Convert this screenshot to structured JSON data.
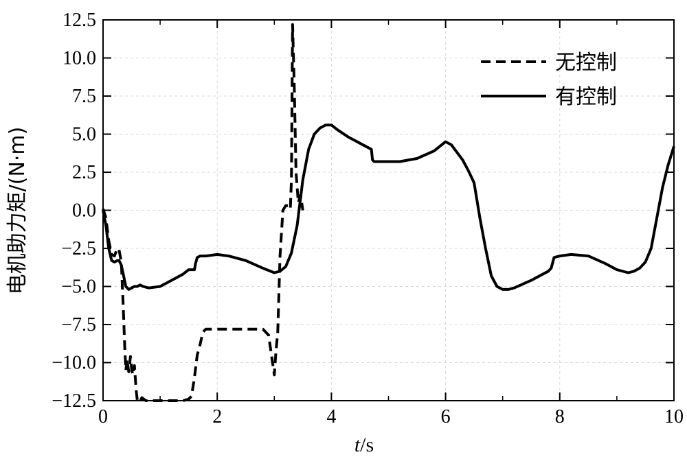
{
  "chart_data": {
    "type": "line",
    "title": "",
    "xlabel_italic": "t",
    "xlabel_unit": "/s",
    "ylabel": "电机助力矩/(N·m)",
    "xlim": [
      0,
      10
    ],
    "ylim": [
      -12.5,
      12.5
    ],
    "x_ticks": [
      0,
      2,
      4,
      6,
      8,
      10
    ],
    "x_tick_labels": [
      "0",
      "2",
      "4",
      "6",
      "8",
      "10"
    ],
    "y_ticks": [
      -12.5,
      -10.0,
      -7.5,
      -5.0,
      -2.5,
      0.0,
      2.5,
      5.0,
      7.5,
      10.0,
      12.5
    ],
    "y_tick_labels": [
      "−12.5",
      "−10.0",
      "−7.5",
      "−5.0",
      "−2.5",
      "0.0",
      "2.5",
      "5.0",
      "7.5",
      "10.0",
      "12.5"
    ],
    "grid": true,
    "legend_position": "top-right",
    "series": [
      {
        "name": "无控制",
        "style": "dashed",
        "color": "#000000",
        "x": [
          0,
          0.05,
          0.1,
          0.15,
          0.2,
          0.25,
          0.28,
          0.32,
          0.35,
          0.38,
          0.4,
          0.42,
          0.45,
          0.48,
          0.5,
          0.52,
          0.55,
          0.58,
          0.6,
          0.62,
          0.65,
          0.68,
          0.75,
          0.9,
          1.0,
          1.1,
          1.2,
          1.3,
          1.4,
          1.5,
          1.55,
          1.6,
          1.65,
          1.7,
          1.75,
          1.8,
          2.0,
          2.4,
          2.8,
          2.9,
          2.95,
          3.0,
          3.03,
          3.06,
          3.1,
          3.15,
          3.2,
          3.25,
          3.28,
          3.3,
          3.32,
          3.35,
          3.38,
          3.42,
          3.46,
          3.5
        ],
        "y": [
          0.1,
          -0.5,
          -2.0,
          -2.9,
          -3.0,
          -2.5,
          -2.6,
          -3.4,
          -6.0,
          -9.0,
          -10.5,
          -9.8,
          -10.6,
          -9.6,
          -10.4,
          -10.8,
          -10.2,
          -11.8,
          -12.5,
          -12.4,
          -12.6,
          -12.3,
          -12.5,
          -12.6,
          -12.5,
          -12.6,
          -12.5,
          -12.6,
          -12.5,
          -12.4,
          -12.2,
          -11.0,
          -9.5,
          -8.8,
          -8.0,
          -7.8,
          -7.8,
          -7.8,
          -7.8,
          -8.2,
          -9.5,
          -10.8,
          -9.2,
          -8.0,
          -3.0,
          0.0,
          0.3,
          0.3,
          0.1,
          2.0,
          12.2,
          8.0,
          2.5,
          0.5,
          1.0,
          0.0
        ]
      },
      {
        "name": "有控制",
        "style": "solid",
        "color": "#000000",
        "x": [
          0,
          0.05,
          0.1,
          0.15,
          0.2,
          0.25,
          0.28,
          0.32,
          0.36,
          0.4,
          0.45,
          0.5,
          0.55,
          0.6,
          0.65,
          0.7,
          0.8,
          1.0,
          1.2,
          1.4,
          1.5,
          1.55,
          1.6,
          1.62,
          1.65,
          1.7,
          1.8,
          2.0,
          2.2,
          2.5,
          2.8,
          3.0,
          3.1,
          3.2,
          3.3,
          3.4,
          3.5,
          3.6,
          3.7,
          3.8,
          3.9,
          4.0,
          4.1,
          4.3,
          4.5,
          4.7,
          4.72,
          4.75,
          4.8,
          5.0,
          5.2,
          5.5,
          5.8,
          6.0,
          6.1,
          6.2,
          6.3,
          6.4,
          6.5,
          6.6,
          6.7,
          6.8,
          6.9,
          7.0,
          7.1,
          7.2,
          7.5,
          7.7,
          7.8,
          7.85,
          7.9,
          8.0,
          8.2,
          8.5,
          8.8,
          9.0,
          9.2,
          9.3,
          9.4,
          9.5,
          9.6,
          9.7,
          9.8,
          9.9,
          10.0
        ],
        "y": [
          0.0,
          -1.0,
          -2.5,
          -3.3,
          -3.4,
          -3.3,
          -3.3,
          -3.6,
          -4.3,
          -5.0,
          -5.2,
          -5.1,
          -5.0,
          -5.0,
          -4.9,
          -5.0,
          -5.1,
          -5.0,
          -4.6,
          -4.2,
          -3.9,
          -3.9,
          -3.9,
          -3.5,
          -3.1,
          -3.0,
          -3.0,
          -2.9,
          -3.0,
          -3.3,
          -3.8,
          -4.1,
          -4.0,
          -3.7,
          -2.8,
          -1.0,
          2.0,
          4.0,
          5.0,
          5.4,
          5.6,
          5.6,
          5.3,
          4.8,
          4.4,
          4.0,
          3.3,
          3.2,
          3.2,
          3.2,
          3.2,
          3.4,
          3.9,
          4.5,
          4.3,
          3.8,
          3.3,
          2.6,
          1.8,
          -0.5,
          -2.5,
          -4.3,
          -5.0,
          -5.2,
          -5.2,
          -5.1,
          -4.6,
          -4.2,
          -4.0,
          -3.8,
          -3.1,
          -3.0,
          -2.9,
          -3.0,
          -3.5,
          -3.9,
          -4.1,
          -4.0,
          -3.8,
          -3.4,
          -2.5,
          -0.5,
          1.5,
          3.0,
          4.2
        ]
      }
    ]
  }
}
